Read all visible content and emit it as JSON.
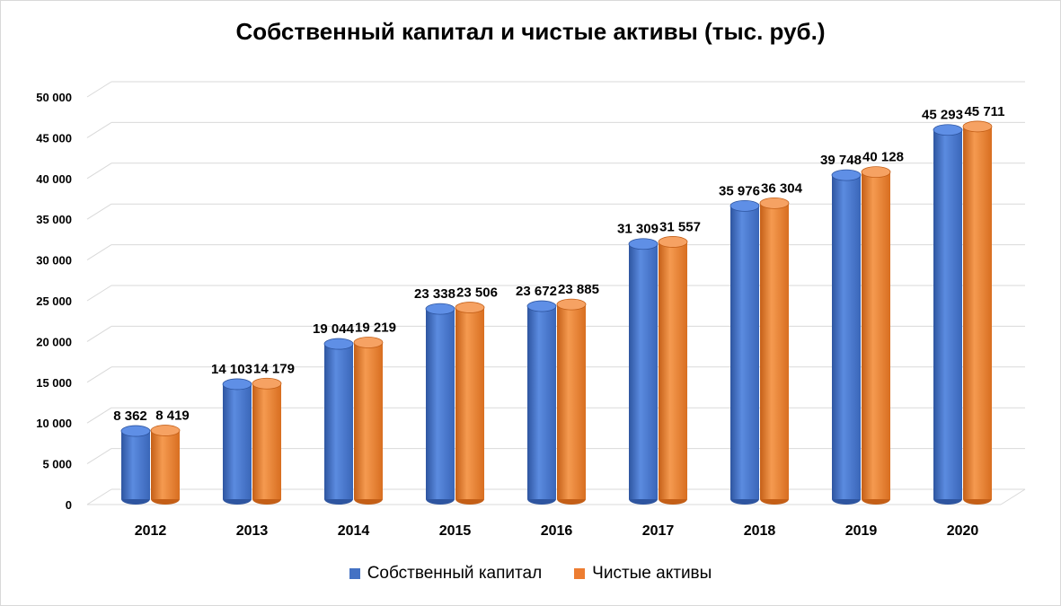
{
  "chart_data": {
    "type": "bar",
    "title": "Собственный капитал и чистые активы (тыс. руб.)",
    "categories": [
      "2012",
      "2013",
      "2014",
      "2015",
      "2016",
      "2017",
      "2018",
      "2019",
      "2020"
    ],
    "series": [
      {
        "name": "Собственный капитал",
        "color": "#4472C4",
        "values": [
          8362,
          14103,
          19044,
          23338,
          23672,
          31309,
          35976,
          39748,
          45293
        ],
        "labels": [
          "8 362",
          "14 103",
          "19 044",
          "23 338",
          "23 672",
          "31 309",
          "35 976",
          "39 748",
          "45 293"
        ]
      },
      {
        "name": "Чистые активы",
        "color": "#ED7D31",
        "values": [
          8419,
          14179,
          19219,
          23506,
          23885,
          31557,
          36304,
          40128,
          45711
        ],
        "labels": [
          "8 419",
          "14 179",
          "19 219",
          "23 506",
          "23 885",
          "31 557",
          "36 304",
          "40 128",
          "45 711"
        ]
      }
    ],
    "ylim": [
      0,
      50000
    ],
    "yticks": [
      0,
      5000,
      10000,
      15000,
      20000,
      25000,
      30000,
      35000,
      40000,
      45000,
      50000
    ],
    "ytick_labels": [
      "0",
      "5 000",
      "10 000",
      "15 000",
      "20 000",
      "25 000",
      "30 000",
      "35 000",
      "40 000",
      "45 000",
      "50 000"
    ],
    "grid": true,
    "legend": "bottom",
    "style": "3d-cylinder"
  }
}
